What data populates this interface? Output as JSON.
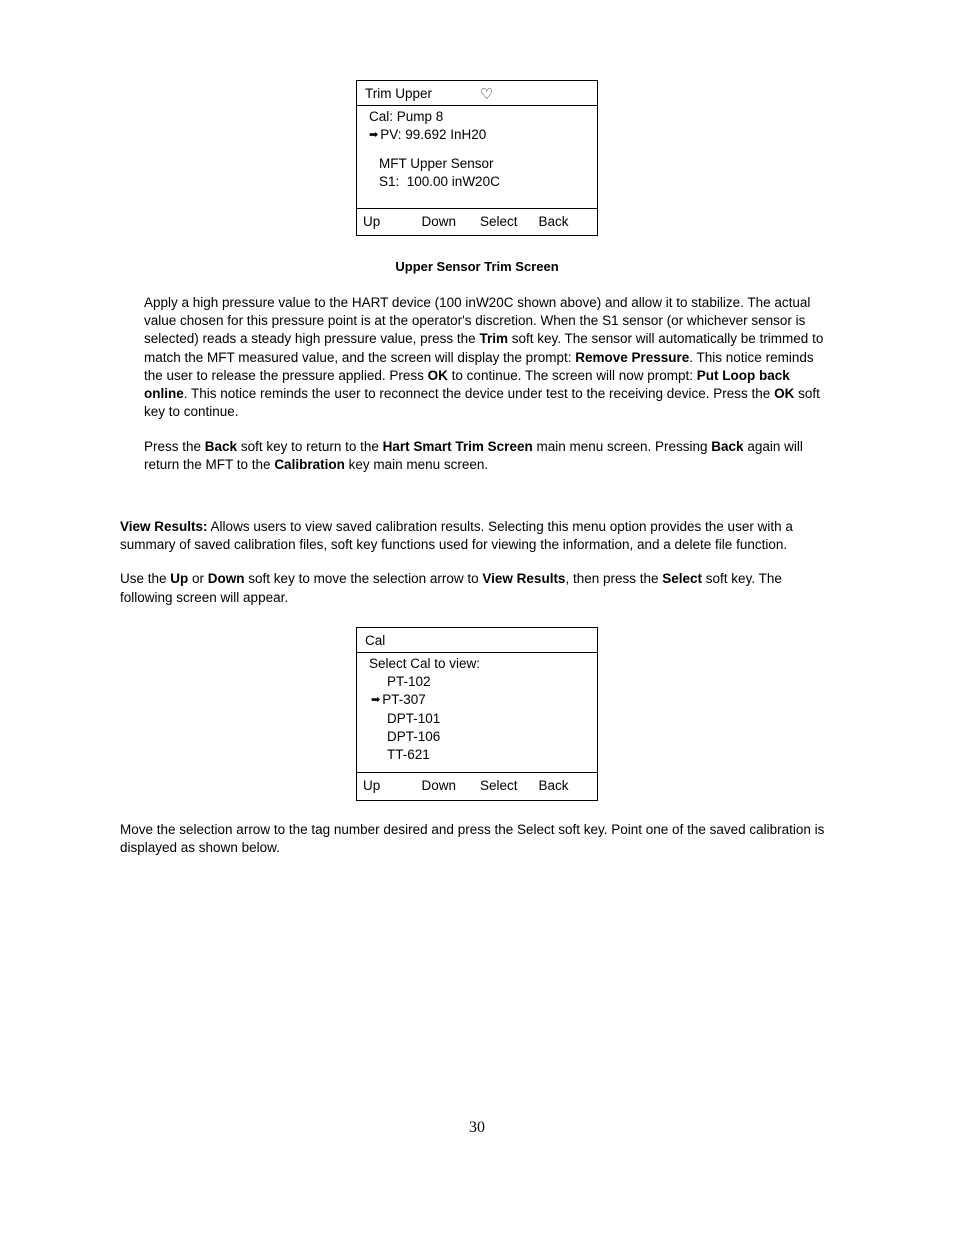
{
  "screen1": {
    "title": "Trim Upper",
    "heart": "♡",
    "line1": "Cal: Pump 8",
    "pv_line": "PV: 99.692 InH20",
    "line3": "MFT Upper Sensor",
    "line4": "S1:  100.00 inW20C",
    "footer": {
      "k1": "Up",
      "k2": "Down",
      "k3": "Select",
      "k4": "Back"
    }
  },
  "caption1": "Upper Sensor Trim Screen",
  "para1": {
    "t1": "Apply a high pressure value to the HART device (100 inW20C shown above) and allow it to stabilize. The actual value chosen for this pressure point is at the operator's discretion. When the S1 sensor (or whichever sensor is selected) reads a steady high pressure value, press the ",
    "b1": "Trim",
    "t2": " soft key. The sensor will automatically be trimmed to match the MFT measured value, and the screen will display the prompt: ",
    "b2": "Remove Pressure",
    "t3": ". This notice reminds the user to release the pressure applied. Press ",
    "b3": "OK",
    "t4": " to continue. The screen will now prompt: ",
    "b4": "Put Loop back online",
    "t5": ".  This notice reminds the user to reconnect the device under test to the receiving device.  Press the ",
    "b5": "OK",
    "t6": " soft key to continue."
  },
  "para2": {
    "t1": "Press the ",
    "b1": "Back",
    "t2": " soft key to return to the ",
    "b2": "Hart Smart Trim Screen",
    "t3": " main menu screen. Pressing ",
    "b3": "Back",
    "t4": " again will return the MFT to the ",
    "b4": "Calibration",
    "t5": " key main menu screen."
  },
  "para3": {
    "b1": "View Results:",
    "t1": " Allows users to view saved calibration results.  Selecting this menu option provides the user with a summary of saved calibration files, soft key functions used for viewing the information, and a delete file function."
  },
  "para4": {
    "t1": "Use the ",
    "b1": "Up",
    "t2": " or ",
    "b2": "Down",
    "t3": " soft key to move the selection arrow to ",
    "b3": "View Results",
    "t4": ", then press the ",
    "b4": "Select",
    "t5": " soft key. The following screen will appear."
  },
  "screen2": {
    "title": "Cal",
    "prompt": "Select Cal to view:",
    "items": [
      "PT-102",
      "PT-307",
      "DPT-101",
      "DPT-106",
      "TT-621"
    ],
    "selected_index": 1,
    "footer": {
      "k1": "Up",
      "k2": "Down",
      "k3": "Select",
      "k4": "Back"
    }
  },
  "para5": "Move the selection arrow to the tag number desired and press the Select soft key.  Point one of the saved calibration is displayed as shown below.",
  "page_number": "30",
  "arrow_glyph": "➡"
}
